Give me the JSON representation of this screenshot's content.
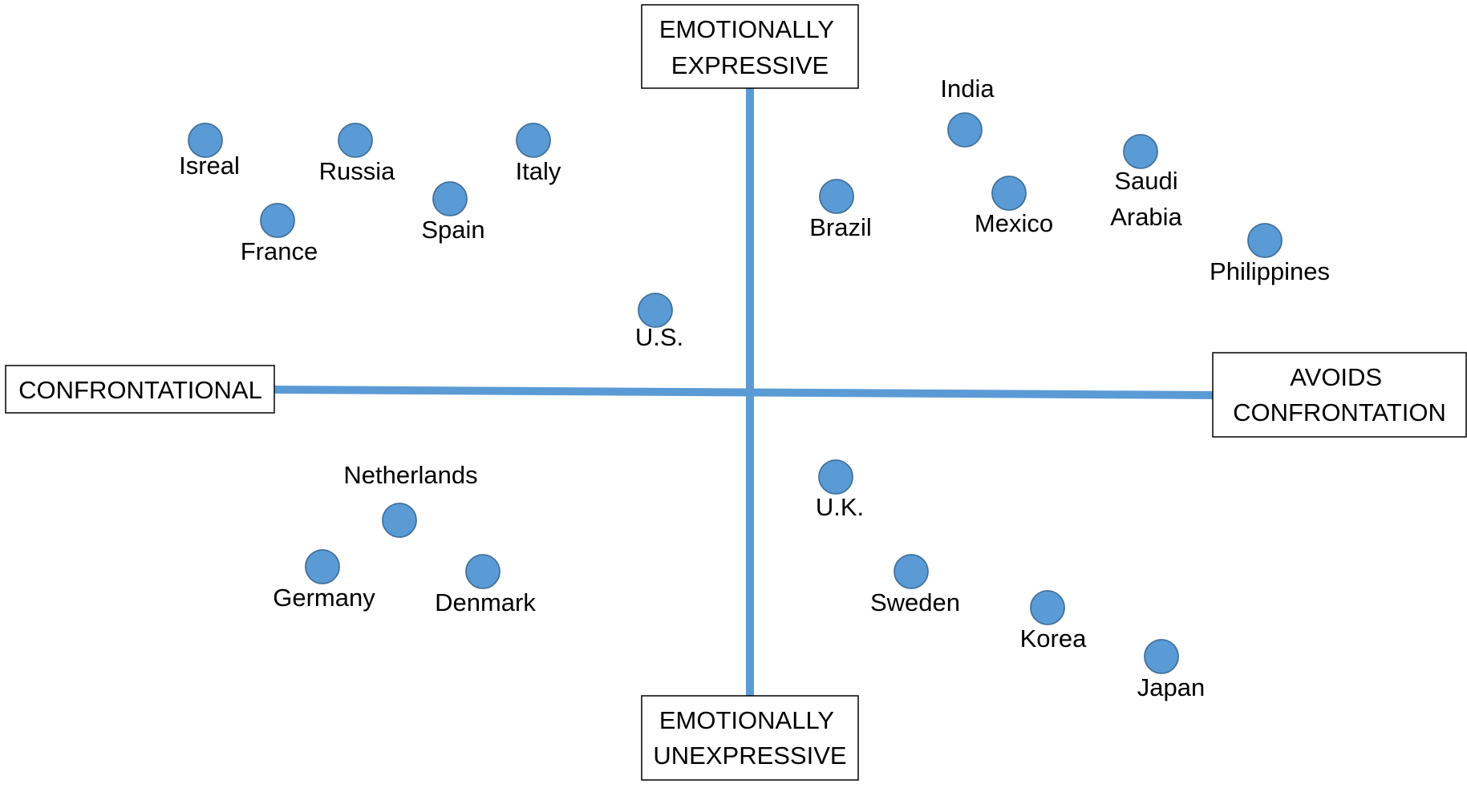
{
  "axes": {
    "top": [
      "EMOTIONALLY",
      "EXPRESSIVE"
    ],
    "bottom": [
      "EMOTIONALLY",
      "UNEXPRESSIVE"
    ],
    "left": [
      "CONFRONTATIONAL"
    ],
    "right": [
      "AVOIDS",
      "CONFRONTATION"
    ]
  },
  "colors": {
    "dot_fill": "#5b9bd5",
    "dot_stroke": "#41719c",
    "axis": "#5b9bd5"
  },
  "countries": [
    {
      "id": "isreal",
      "label": [
        "Isreal"
      ],
      "label_position": "below"
    },
    {
      "id": "russia",
      "label": [
        "Russia"
      ],
      "label_position": "below"
    },
    {
      "id": "italy",
      "label": [
        "Italy"
      ],
      "label_position": "below"
    },
    {
      "id": "france",
      "label": [
        "France"
      ],
      "label_position": "below"
    },
    {
      "id": "spain",
      "label": [
        "Spain"
      ],
      "label_position": "below"
    },
    {
      "id": "us",
      "label": [
        "U.S."
      ],
      "label_position": "below"
    },
    {
      "id": "india",
      "label": [
        "India"
      ],
      "label_position": "above"
    },
    {
      "id": "brazil",
      "label": [
        "Brazil"
      ],
      "label_position": "below"
    },
    {
      "id": "mexico",
      "label": [
        "Mexico"
      ],
      "label_position": "below"
    },
    {
      "id": "saudi-arabia",
      "label": [
        "Saudi",
        "Arabia"
      ],
      "label_position": "below"
    },
    {
      "id": "philippines",
      "label": [
        "Philippines"
      ],
      "label_position": "below"
    },
    {
      "id": "netherlands",
      "label": [
        "Netherlands"
      ],
      "label_position": "above"
    },
    {
      "id": "germany",
      "label": [
        "Germany"
      ],
      "label_position": "below"
    },
    {
      "id": "denmark",
      "label": [
        "Denmark"
      ],
      "label_position": "below"
    },
    {
      "id": "uk",
      "label": [
        "U.K."
      ],
      "label_position": "below"
    },
    {
      "id": "sweden",
      "label": [
        "Sweden"
      ],
      "label_position": "below"
    },
    {
      "id": "korea",
      "label": [
        "Korea"
      ],
      "label_position": "below"
    },
    {
      "id": "japan",
      "label": [
        "Japan"
      ],
      "label_position": "below"
    }
  ]
}
